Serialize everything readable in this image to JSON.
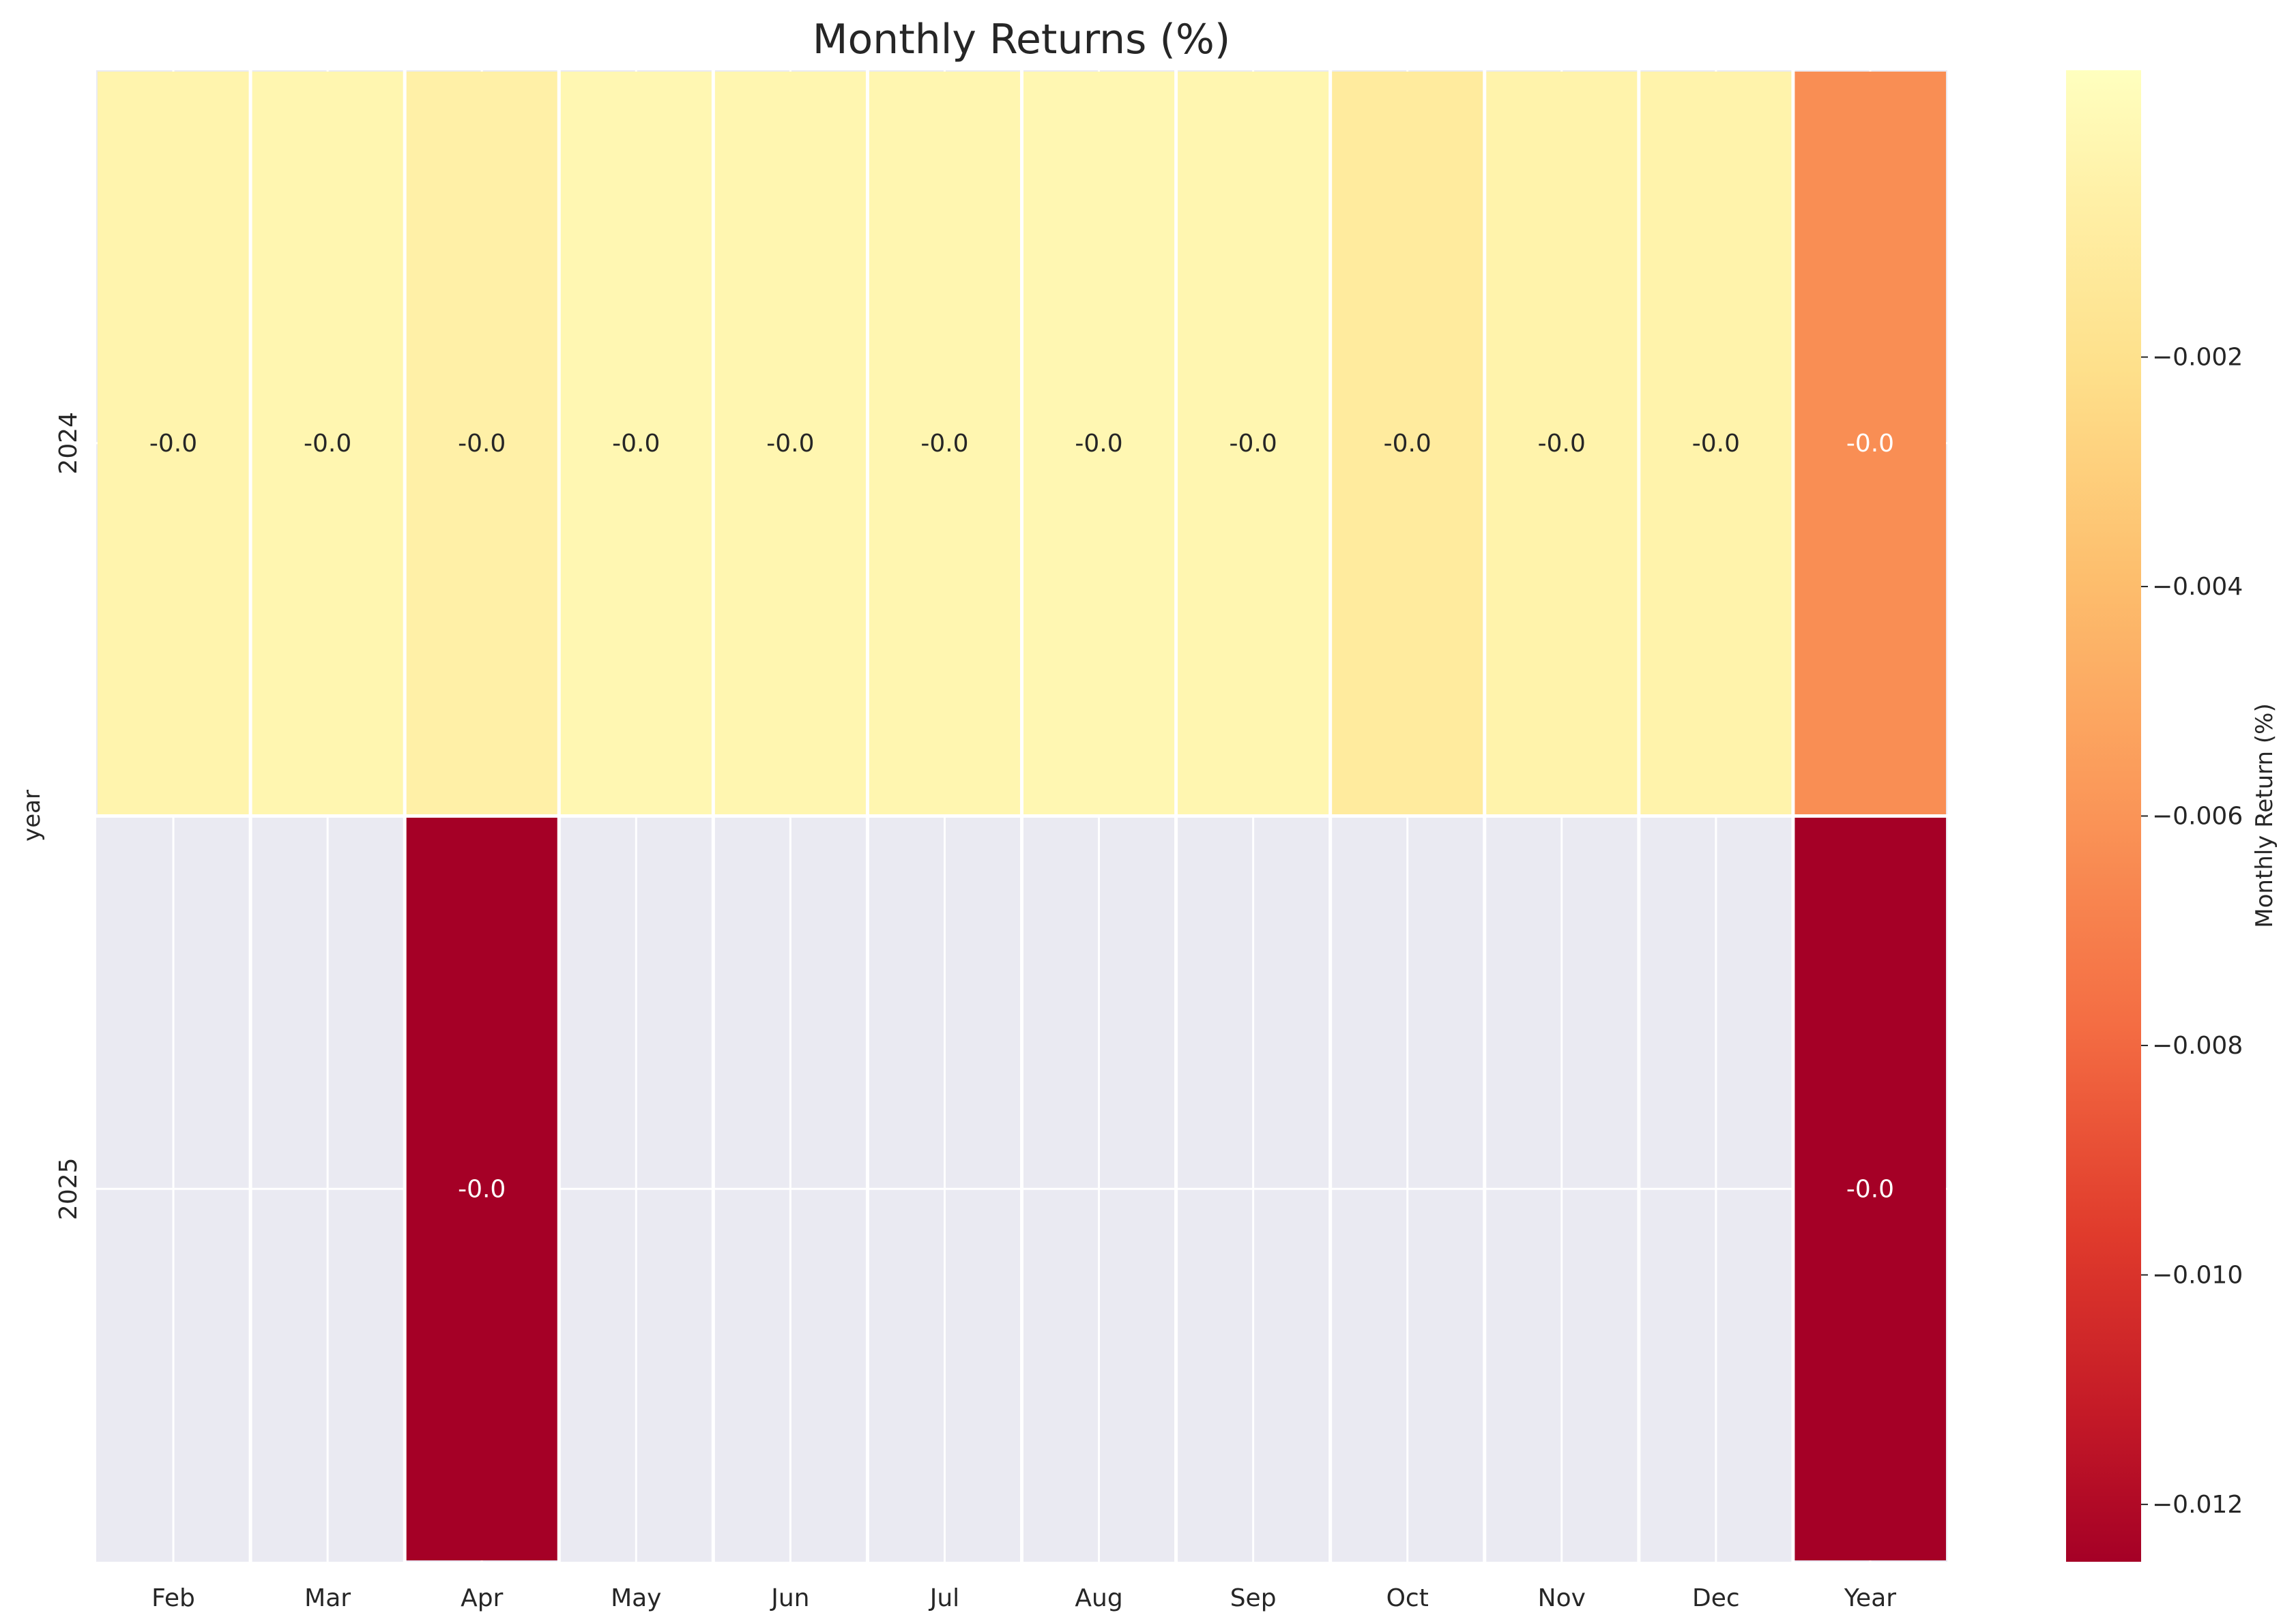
{
  "chart_data": {
    "type": "heatmap",
    "title": "Monthly Returns (%)",
    "xlabel": "",
    "ylabel": "year",
    "columns": [
      "Feb",
      "Mar",
      "Apr",
      "May",
      "Jun",
      "Jul",
      "Aug",
      "Sep",
      "Oct",
      "Nov",
      "Dec",
      "Year"
    ],
    "rows": [
      "2024",
      "2025"
    ],
    "values": [
      [
        -0.0003,
        -0.0002,
        -0.0006,
        -0.0001,
        -0.0002,
        -0.0002,
        -0.0001,
        -0.0002,
        -0.0011,
        -0.0004,
        -0.0004,
        -0.0063
      ],
      [
        null,
        null,
        -0.0125,
        null,
        null,
        null,
        null,
        null,
        null,
        null,
        null,
        -0.0125
      ]
    ],
    "cell_labels": [
      [
        "-0.0",
        "-0.0",
        "-0.0",
        "-0.0",
        "-0.0",
        "-0.0",
        "-0.0",
        "-0.0",
        "-0.0",
        "-0.0",
        "-0.0",
        "-0.0"
      ],
      [
        "",
        "",
        "-0.0",
        "",
        "",
        "",
        "",
        "",
        "",
        "",
        "",
        "-0.0"
      ]
    ],
    "colorbar": {
      "label": "Monthly Return (%)",
      "colormap": "RdYlGn-like (red to yellow)",
      "vmin": -0.0125,
      "vmax": 0.0005,
      "ticks": [
        -0.002,
        -0.004,
        -0.006,
        -0.008,
        -0.01,
        -0.012
      ],
      "tick_labels": [
        "−0.002",
        "−0.004",
        "−0.006",
        "−0.008",
        "−0.010",
        "−0.012"
      ]
    },
    "grid": true,
    "missing_color": "#eaeaf2"
  }
}
